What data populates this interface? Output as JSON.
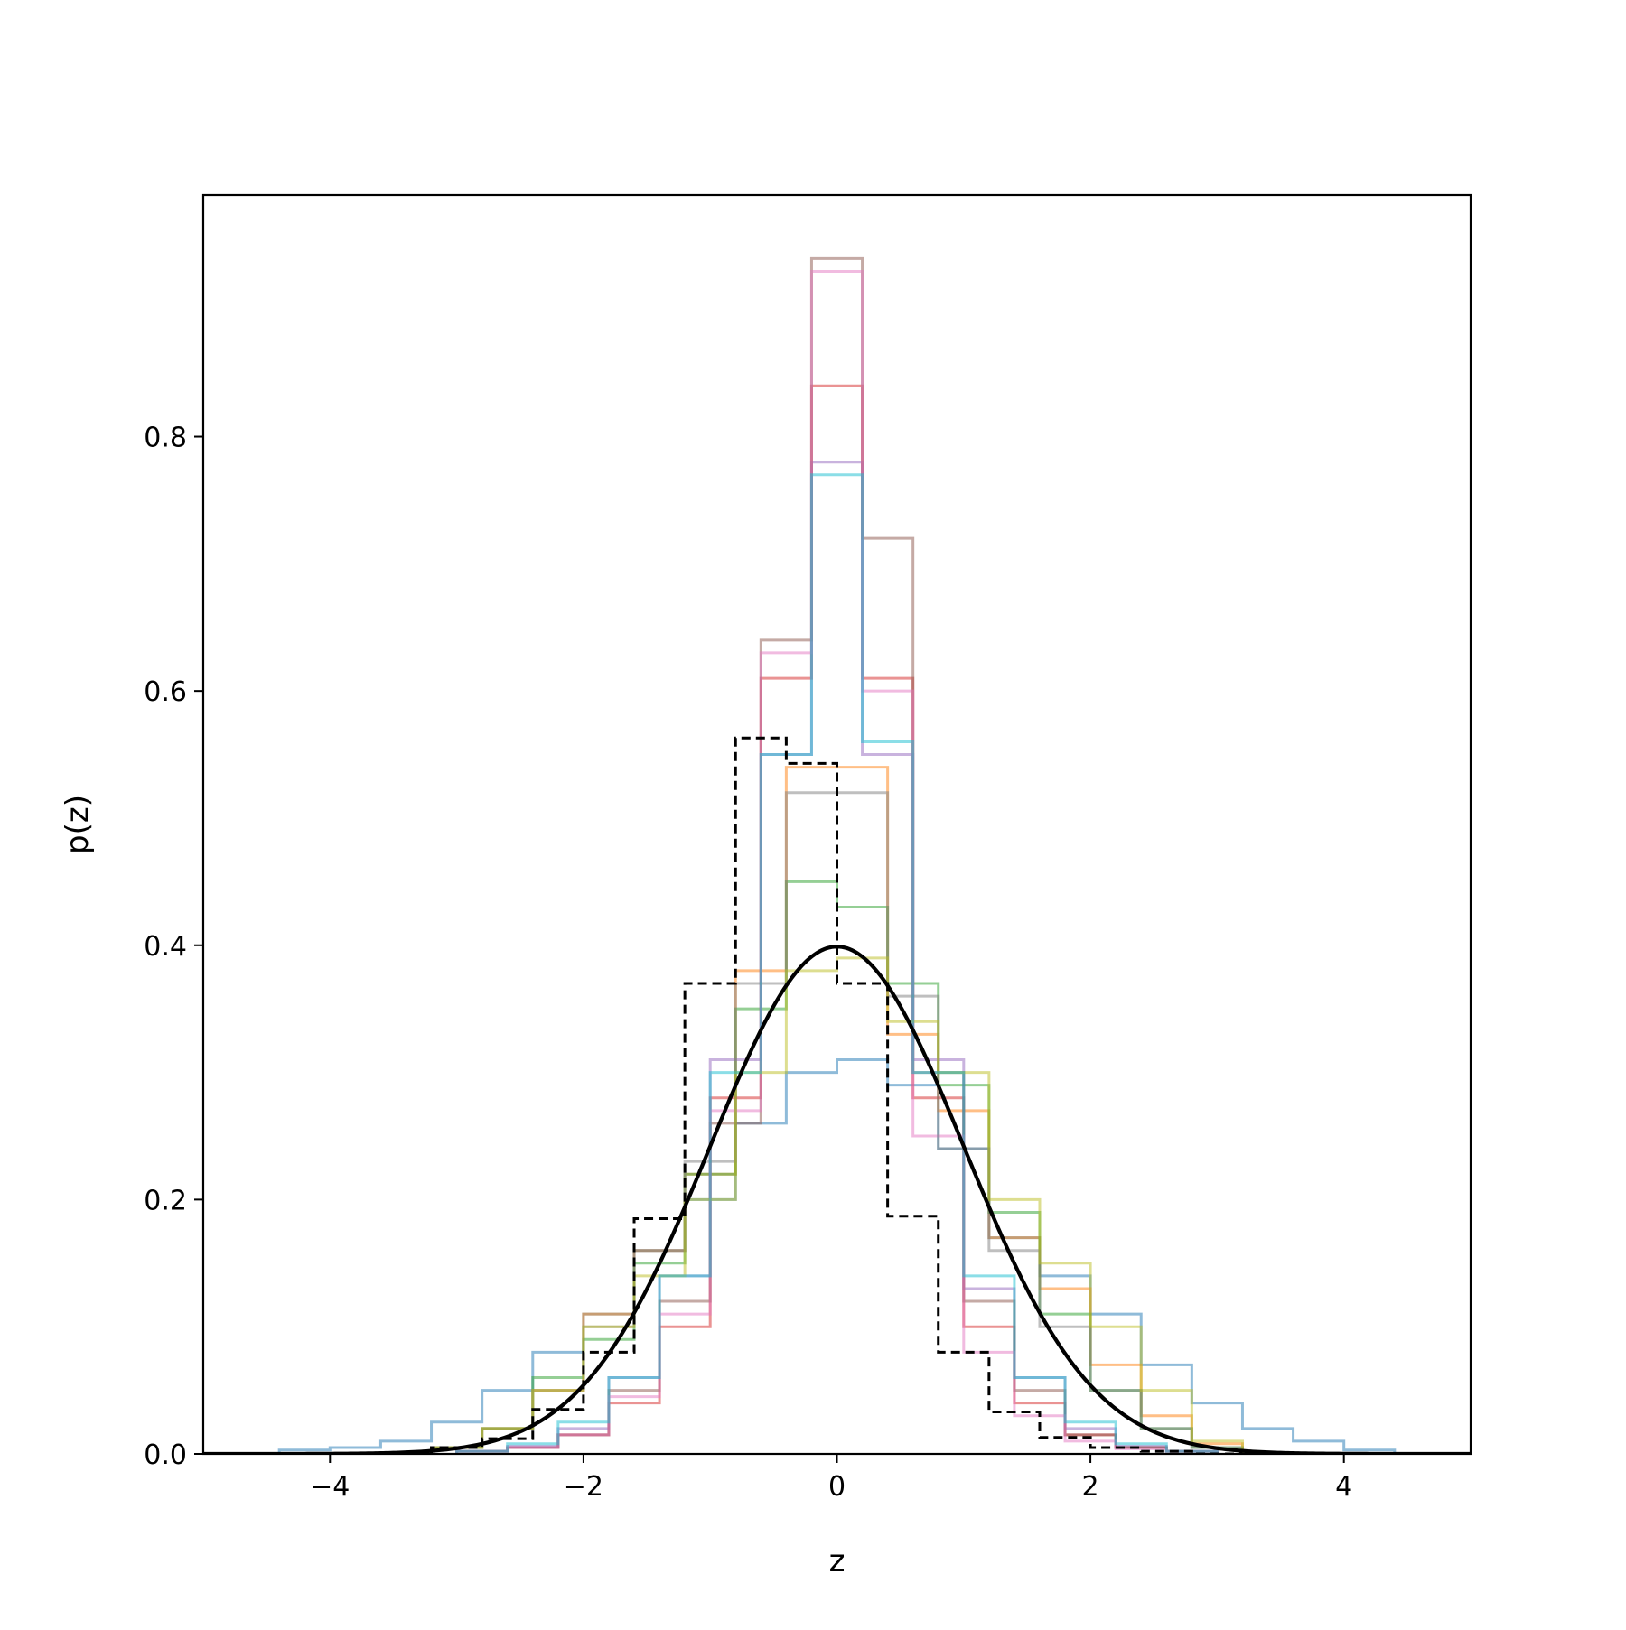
{
  "chart_data": {
    "type": "line",
    "title": "",
    "xlabel": "z",
    "ylabel": "p(z)",
    "xlim": [
      -5,
      5
    ],
    "ylim": [
      0,
      0.99
    ],
    "xticks": [
      -4,
      -2,
      0,
      2,
      4
    ],
    "xtick_labels": [
      "−4",
      "−2",
      "0",
      "2",
      "4"
    ],
    "yticks": [
      0.0,
      0.2,
      0.4,
      0.6,
      0.8
    ],
    "ytick_labels": [
      "0.0",
      "0.2",
      "0.4",
      "0.6",
      "0.8"
    ],
    "grid": false,
    "legend": "none",
    "histogram_series": [
      {
        "color": "#1f77b4",
        "edges": [
          -4.8,
          -4.4,
          -4.0,
          -3.6,
          -3.2,
          -2.8,
          -2.4,
          -2.0,
          -1.6,
          -1.2,
          -0.8,
          -0.4,
          0.0,
          0.4,
          0.8,
          1.2,
          1.6,
          2.0,
          2.4,
          2.8,
          3.2,
          3.6,
          4.0,
          4.4,
          4.8
        ],
        "values": [
          0.0,
          0.003,
          0.005,
          0.01,
          0.025,
          0.05,
          0.08,
          0.11,
          0.16,
          0.2,
          0.26,
          0.3,
          0.31,
          0.29,
          0.24,
          0.17,
          0.14,
          0.11,
          0.07,
          0.04,
          0.02,
          0.01,
          0.003,
          0.0
        ]
      },
      {
        "color": "#ff7f0e",
        "edges": [
          -3.2,
          -2.8,
          -2.4,
          -2.0,
          -1.6,
          -1.2,
          -0.8,
          -0.4,
          0.0,
          0.4,
          0.8,
          1.2,
          1.6,
          2.0,
          2.4,
          2.8,
          3.2
        ],
        "values": [
          0.005,
          0.02,
          0.05,
          0.11,
          0.16,
          0.22,
          0.38,
          0.54,
          0.54,
          0.33,
          0.27,
          0.17,
          0.13,
          0.07,
          0.03,
          0.008
        ]
      },
      {
        "color": "#2ca02c",
        "edges": [
          -3.2,
          -2.8,
          -2.4,
          -2.0,
          -1.6,
          -1.2,
          -0.8,
          -0.4,
          0.0,
          0.4,
          0.8,
          1.2,
          1.6,
          2.0,
          2.4,
          2.8,
          3.2
        ],
        "values": [
          0.005,
          0.02,
          0.06,
          0.09,
          0.15,
          0.22,
          0.35,
          0.45,
          0.43,
          0.37,
          0.29,
          0.19,
          0.11,
          0.05,
          0.02,
          0.005
        ]
      },
      {
        "color": "#d62728",
        "edges": [
          -3.0,
          -2.6,
          -2.2,
          -1.8,
          -1.4,
          -1.0,
          -0.6,
          -0.2,
          0.2,
          0.6,
          1.0,
          1.4,
          1.8,
          2.2,
          2.6,
          3.0
        ],
        "values": [
          0.002,
          0.005,
          0.015,
          0.04,
          0.1,
          0.28,
          0.61,
          0.84,
          0.61,
          0.28,
          0.1,
          0.04,
          0.015,
          0.005,
          0.002
        ]
      },
      {
        "color": "#9467bd",
        "edges": [
          -3.0,
          -2.6,
          -2.2,
          -1.8,
          -1.4,
          -1.0,
          -0.6,
          -0.2,
          0.2,
          0.6,
          1.0,
          1.4,
          1.8,
          2.2,
          2.6,
          3.0
        ],
        "values": [
          0.002,
          0.006,
          0.02,
          0.06,
          0.14,
          0.31,
          0.55,
          0.78,
          0.55,
          0.31,
          0.13,
          0.06,
          0.02,
          0.006,
          0.002
        ]
      },
      {
        "color": "#8c564b",
        "edges": [
          -3.0,
          -2.6,
          -2.2,
          -1.8,
          -1.4,
          -1.0,
          -0.6,
          -0.2,
          0.2,
          0.6,
          1.0,
          1.4,
          1.8,
          2.2,
          2.6,
          3.0
        ],
        "values": [
          0.002,
          0.005,
          0.015,
          0.05,
          0.12,
          0.26,
          0.64,
          0.94,
          0.72,
          0.3,
          0.12,
          0.05,
          0.015,
          0.005,
          0.002
        ]
      },
      {
        "color": "#e377c2",
        "edges": [
          -3.0,
          -2.6,
          -2.2,
          -1.8,
          -1.4,
          -1.0,
          -0.6,
          -0.2,
          0.2,
          0.6,
          1.0,
          1.4,
          1.8,
          2.2,
          2.6,
          3.0
        ],
        "values": [
          0.002,
          0.005,
          0.015,
          0.045,
          0.11,
          0.27,
          0.63,
          0.93,
          0.6,
          0.25,
          0.08,
          0.03,
          0.01,
          0.004,
          0.002
        ]
      },
      {
        "color": "#7f7f7f",
        "edges": [
          -3.2,
          -2.8,
          -2.4,
          -2.0,
          -1.6,
          -1.2,
          -0.8,
          -0.4,
          0.0,
          0.4,
          0.8,
          1.2,
          1.6,
          2.0,
          2.4,
          2.8,
          3.2
        ],
        "values": [
          0.005,
          0.02,
          0.05,
          0.1,
          0.16,
          0.23,
          0.37,
          0.52,
          0.52,
          0.36,
          0.24,
          0.16,
          0.1,
          0.05,
          0.02,
          0.005
        ]
      },
      {
        "color": "#bcbd22",
        "edges": [
          -3.2,
          -2.8,
          -2.4,
          -2.0,
          -1.6,
          -1.2,
          -0.8,
          -0.4,
          0.0,
          0.4,
          0.8,
          1.2,
          1.6,
          2.0,
          2.4,
          2.8,
          3.2
        ],
        "values": [
          0.005,
          0.02,
          0.05,
          0.1,
          0.14,
          0.2,
          0.3,
          0.38,
          0.39,
          0.34,
          0.3,
          0.2,
          0.15,
          0.1,
          0.05,
          0.01
        ]
      },
      {
        "color": "#17becf",
        "edges": [
          -3.0,
          -2.6,
          -2.2,
          -1.8,
          -1.4,
          -1.0,
          -0.6,
          -0.2,
          0.2,
          0.6,
          1.0,
          1.4,
          1.8,
          2.2,
          2.6,
          3.0
        ],
        "values": [
          0.002,
          0.008,
          0.025,
          0.06,
          0.14,
          0.3,
          0.55,
          0.77,
          0.56,
          0.3,
          0.14,
          0.06,
          0.025,
          0.008,
          0.002
        ]
      }
    ],
    "dashed_histogram": {
      "color": "#000000",
      "edges": [
        -3.2,
        -2.8,
        -2.4,
        -2.0,
        -1.6,
        -1.2,
        -0.8,
        -0.4,
        0.0,
        0.4,
        0.8,
        1.2,
        1.6,
        2.0,
        2.4,
        2.8,
        3.2
      ],
      "values": [
        0.005,
        0.012,
        0.035,
        0.08,
        0.185,
        0.37,
        0.563,
        0.543,
        0.37,
        0.187,
        0.08,
        0.033,
        0.013,
        0.005,
        0.002,
        0.0
      ]
    },
    "curve": {
      "color": "#000000",
      "function": "standard_normal_pdf",
      "mean": 0,
      "std": 1,
      "x_range": [
        -5,
        5
      ]
    }
  }
}
